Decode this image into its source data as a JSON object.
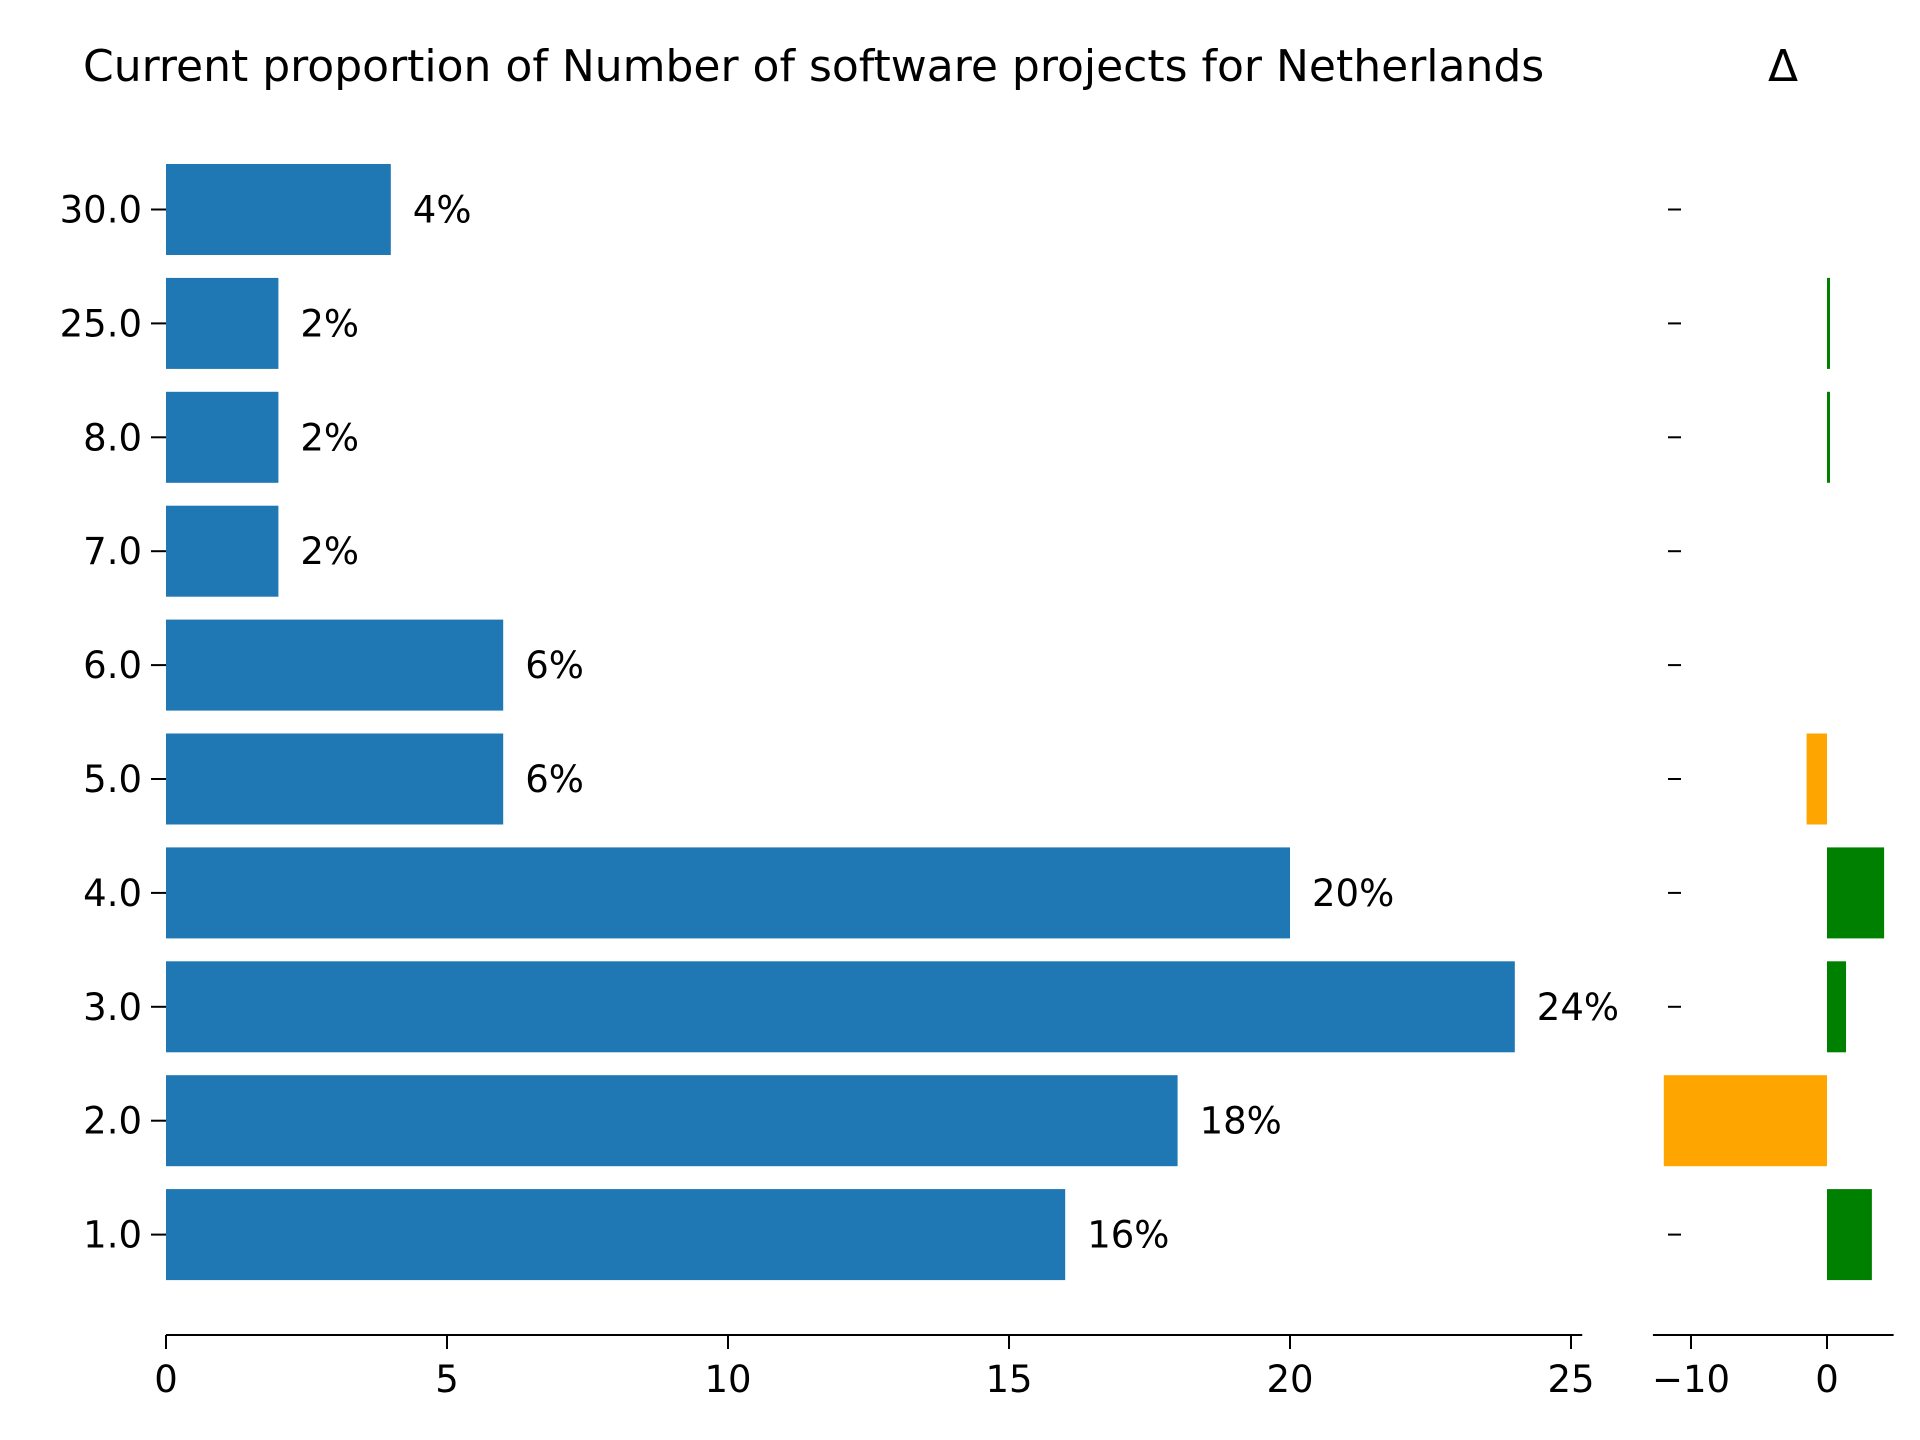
{
  "chart_data": [
    {
      "type": "bar",
      "orientation": "horizontal",
      "title": "Current proportion of Number of software projects for Netherlands",
      "categories": [
        "30.0",
        "25.0",
        "8.0",
        "7.0",
        "6.0",
        "5.0",
        "4.0",
        "3.0",
        "2.0",
        "1.0"
      ],
      "values": [
        4,
        2,
        2,
        2,
        6,
        6,
        20,
        24,
        18,
        16
      ],
      "value_labels": [
        "4%",
        "2%",
        "2%",
        "2%",
        "6%",
        "6%",
        "20%",
        "24%",
        "18%",
        "16%"
      ],
      "x_ticks": [
        "0",
        "5",
        "10",
        "15",
        "20",
        "25"
      ],
      "xlim": [
        0,
        25.2
      ],
      "xlabel": "",
      "ylabel": "",
      "bar_color": "#1f77b4",
      "grid": false
    },
    {
      "type": "bar",
      "orientation": "horizontal",
      "title": "Δ",
      "categories": [
        "30.0",
        "25.0",
        "8.0",
        "7.0",
        "6.0",
        "5.0",
        "4.0",
        "3.0",
        "2.0",
        "1.0"
      ],
      "values": [
        0,
        0.2,
        0.2,
        0,
        0,
        -1.5,
        4.2,
        1.4,
        -12,
        3.3
      ],
      "x_ticks": [
        "−10",
        "0"
      ],
      "x_tick_values": [
        -10,
        0
      ],
      "xlim": [
        -12.8,
        4.9
      ],
      "positive_color": "#008000",
      "negative_color": "#ffa500",
      "grid": false
    }
  ]
}
